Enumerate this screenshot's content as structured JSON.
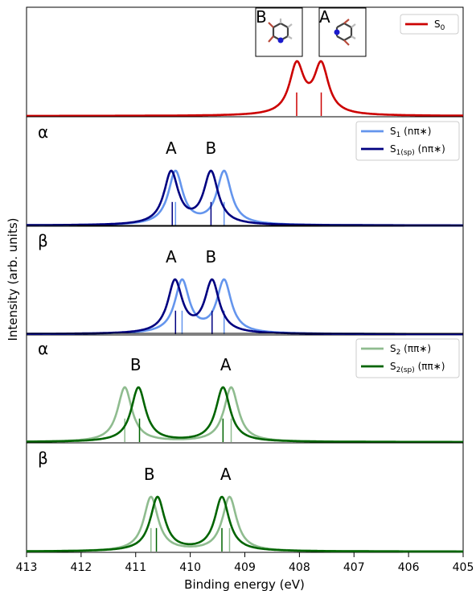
{
  "chart_data": [
    {
      "type": "line",
      "panel_tag": "",
      "xlim": [
        413,
        405
      ],
      "x_reversed": true,
      "series": [
        {
          "name": "S0",
          "name_sub": "0",
          "name_suffix": "",
          "color": "#cc0000",
          "peaks": [
            408.05,
            407.6
          ],
          "sticks": [
            408.05,
            407.6
          ],
          "stick_heights": [
            0.55,
            0.55
          ]
        }
      ],
      "peak_labels": [],
      "inset_labels": [
        "B",
        "A"
      ]
    },
    {
      "type": "line",
      "panel_tag": "α",
      "xlim": [
        413,
        405
      ],
      "x_reversed": true,
      "series": [
        {
          "name": "S1 (nπ*)",
          "name_sub": "1",
          "name_suffix": " (nπ∗)",
          "color": "#6495ed",
          "peaks": [
            410.27,
            409.38
          ],
          "sticks": [
            410.27,
            409.38
          ],
          "stick_heights": [
            0.55,
            0.55
          ]
        },
        {
          "name": "S1(sp) (nπ*)",
          "name_sub": "1(sp)",
          "name_suffix": " (nπ∗)",
          "color": "#000080",
          "peaks": [
            410.35,
            409.62
          ],
          "sticks": [
            410.33,
            409.62
          ],
          "stick_heights": [
            0.55,
            0.55
          ]
        }
      ],
      "peak_labels": [
        {
          "text": "A",
          "x": 410.35
        },
        {
          "text": "B",
          "x": 409.62
        }
      ]
    },
    {
      "type": "line",
      "panel_tag": "β",
      "xlim": [
        413,
        405
      ],
      "x_reversed": true,
      "series": [
        {
          "name": "S1 (nπ*)",
          "color": "#6495ed",
          "peaks": [
            410.15,
            409.38
          ],
          "sticks": [
            410.15,
            409.38
          ],
          "stick_heights": [
            0.55,
            0.55
          ]
        },
        {
          "name": "S1(sp) (nπ*)",
          "color": "#000080",
          "peaks": [
            410.28,
            409.6
          ],
          "sticks": [
            410.27,
            409.6
          ],
          "stick_heights": [
            0.55,
            0.55
          ]
        }
      ],
      "peak_labels": [
        {
          "text": "A",
          "x": 410.35
        },
        {
          "text": "B",
          "x": 409.62
        }
      ]
    },
    {
      "type": "line",
      "panel_tag": "α",
      "xlim": [
        413,
        405
      ],
      "x_reversed": true,
      "series": [
        {
          "name": "S2 (ππ*)",
          "name_sub": "2",
          "name_suffix": " (ππ∗)",
          "color": "#8fbc8f",
          "peaks": [
            411.2,
            409.25
          ],
          "sticks": [
            411.2,
            409.25
          ],
          "stick_heights": [
            0.55,
            0.55
          ]
        },
        {
          "name": "S2(sp) (ππ*)",
          "name_sub": "2(sp)",
          "name_suffix": " (ππ∗)",
          "color": "#006400",
          "peaks": [
            410.95,
            409.4
          ],
          "sticks": [
            410.93,
            409.4
          ],
          "stick_heights": [
            0.55,
            0.55
          ]
        }
      ],
      "peak_labels": [
        {
          "text": "B",
          "x": 411.0
        },
        {
          "text": "A",
          "x": 409.35
        }
      ]
    },
    {
      "type": "line",
      "panel_tag": "β",
      "xlim": [
        413,
        405
      ],
      "x_reversed": true,
      "series": [
        {
          "name": "S2 (ππ*)",
          "color": "#8fbc8f",
          "peaks": [
            410.72,
            409.28
          ],
          "sticks": [
            410.72,
            409.28
          ],
          "stick_heights": [
            0.55,
            0.55
          ]
        },
        {
          "name": "S2(sp) (ππ*)",
          "color": "#006400",
          "peaks": [
            410.6,
            409.42
          ],
          "sticks": [
            410.62,
            409.42
          ],
          "stick_heights": [
            0.55,
            0.55
          ]
        }
      ],
      "peak_labels": [
        {
          "text": "B",
          "x": 410.75
        },
        {
          "text": "A",
          "x": 409.35
        }
      ]
    }
  ],
  "x_axis": {
    "label": "Binding energy (eV)",
    "ticks": [
      413,
      412,
      411,
      410,
      409,
      408,
      407,
      406,
      405
    ]
  },
  "y_axis": {
    "label": "Intensity (arb. units)"
  },
  "legends": [
    {
      "entries": [
        {
          "main": "S",
          "sub": "0",
          "suffix": "",
          "color": "#cc0000"
        }
      ]
    },
    {
      "entries": [
        {
          "main": "S",
          "sub": "1",
          "suffix": " (nπ∗)",
          "color": "#6495ed"
        },
        {
          "main": "S",
          "sub": "1(sp)",
          "suffix": " (nπ∗)",
          "color": "#000080"
        }
      ]
    },
    {
      "entries": [
        {
          "main": "S",
          "sub": "2",
          "suffix": " (ππ∗)",
          "color": "#8fbc8f"
        },
        {
          "main": "S",
          "sub": "2(sp)",
          "suffix": " (ππ∗)",
          "color": "#006400"
        }
      ]
    }
  ]
}
